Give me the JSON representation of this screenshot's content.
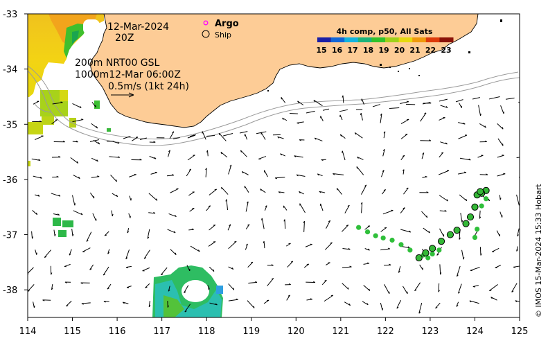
{
  "map": {
    "date": "12-Mar-2024",
    "time": "20Z",
    "current_line1": "200m  NRT00 GSL",
    "current_line2": "1000m12-Mar 06:00Z",
    "current_scale": "0.5m/s (1kt 24h)",
    "credit": "© IMOS 15-Mar-2024 15:33 Hobart",
    "legend": {
      "argo": "Argo",
      "ship": "Ship"
    },
    "colorbar": {
      "title": "4h comp, p50, All Sats",
      "ticks": [
        "15",
        "16",
        "17",
        "18",
        "19",
        "20",
        "21",
        "22",
        "23"
      ],
      "colors": [
        "#1b1fa6",
        "#1066d8",
        "#12b4e0",
        "#1bb37a",
        "#31c22b",
        "#9ed11a",
        "#e6d90e",
        "#f09a0c",
        "#de3b0b",
        "#8a1208"
      ]
    },
    "axes": {
      "x_ticks": [
        "114",
        "115",
        "116",
        "117",
        "118",
        "119",
        "120",
        "121",
        "122",
        "123",
        "124",
        "125"
      ],
      "y_ticks": [
        "-33",
        "-34",
        "-35",
        "-36",
        "-37",
        "-38"
      ],
      "x_range": [
        114,
        125
      ],
      "y_range": [
        -38.5,
        -33
      ]
    },
    "colors": {
      "land": "#fdcc96",
      "coast": "#000000",
      "bathy": "#9a9a9a"
    },
    "ship_track": [
      [
        124.25,
        -36.2
      ],
      [
        124.15,
        -36.25
      ],
      [
        124.05,
        -36.28
      ],
      [
        124.12,
        -36.22
      ],
      [
        124.0,
        -36.5
      ],
      [
        123.9,
        -36.68
      ],
      [
        123.8,
        -36.8
      ],
      [
        123.6,
        -36.92
      ],
      [
        123.45,
        -37.0
      ],
      [
        123.25,
        -37.12
      ],
      [
        123.05,
        -37.25
      ],
      [
        122.9,
        -37.33
      ],
      [
        122.75,
        -37.42
      ]
    ],
    "ship_track_extra": [
      [
        124.25,
        -36.35
      ],
      [
        124.15,
        -36.48
      ],
      [
        124.05,
        -36.9
      ],
      [
        124.0,
        -37.05
      ],
      [
        123.2,
        -37.28
      ],
      [
        123.05,
        -37.35
      ],
      [
        122.95,
        -37.42
      ],
      [
        122.85,
        -37.37
      ],
      [
        122.55,
        -37.28
      ],
      [
        122.35,
        -37.18
      ],
      [
        122.15,
        -37.1
      ],
      [
        121.95,
        -37.06
      ],
      [
        121.78,
        -37.02
      ],
      [
        121.6,
        -36.95
      ],
      [
        121.4,
        -36.87
      ]
    ]
  }
}
